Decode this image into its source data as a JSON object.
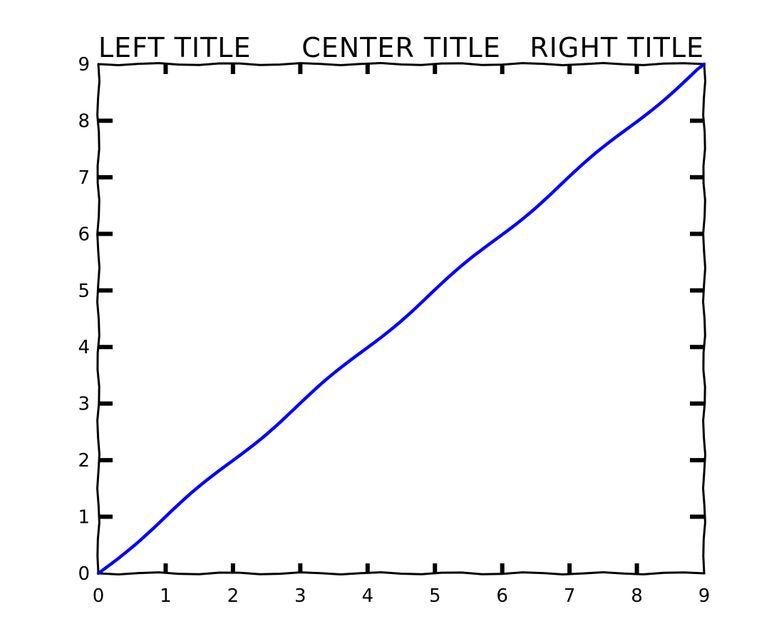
{
  "chart_data": {
    "type": "line",
    "titles": {
      "left": "LEFT TITLE",
      "center": "CENTER TITLE",
      "right": "RIGHT TITLE"
    },
    "xlabel": "",
    "ylabel": "",
    "xlim": [
      0,
      9
    ],
    "ylim": [
      0,
      9
    ],
    "x_ticks": [
      "0",
      "1",
      "2",
      "3",
      "4",
      "5",
      "6",
      "7",
      "8",
      "9"
    ],
    "y_ticks": [
      "0",
      "1",
      "2",
      "3",
      "4",
      "5",
      "6",
      "7",
      "8",
      "9"
    ],
    "grid": false,
    "style": "xkcd",
    "series": [
      {
        "color": "#0000ff",
        "x": [
          0,
          1,
          2,
          3,
          4,
          5,
          6,
          7,
          8,
          9
        ],
        "y": [
          0,
          1,
          2,
          3,
          4,
          5,
          6,
          7,
          8,
          9
        ]
      }
    ]
  }
}
